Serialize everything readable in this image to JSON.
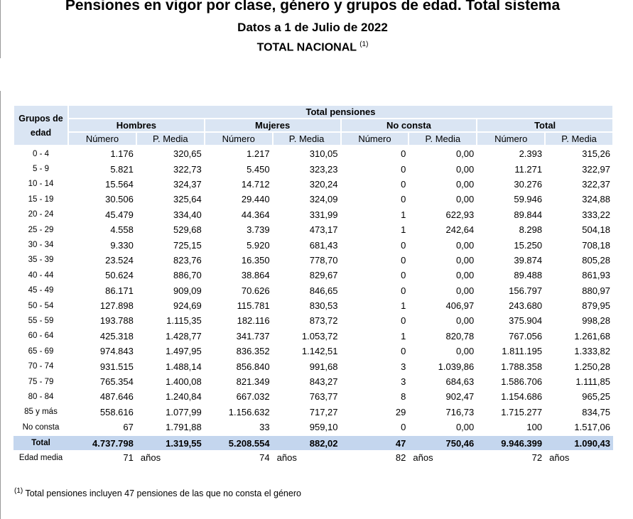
{
  "header": {
    "title": "Pensiones en vigor por clase, género y grupos de edad. Total sistema",
    "subtitle": "Datos a 1 de Julio de 2022",
    "heading": "TOTAL NACIONAL",
    "heading_note": "(1)"
  },
  "table": {
    "corner": "Grupos de edad",
    "group_header": "Total pensiones",
    "sections": [
      "Hombres",
      "Mujeres",
      "No consta",
      "Total"
    ],
    "columns": [
      "Número",
      "P. Media",
      "Número",
      "P. Media",
      "Número",
      "P. Media",
      "Número",
      "P. Media"
    ],
    "rows": [
      [
        "0 - 4",
        "1.176",
        "320,65",
        "1.217",
        "310,05",
        "0",
        "0,00",
        "2.393",
        "315,26"
      ],
      [
        "5 - 9",
        "5.821",
        "322,73",
        "5.450",
        "323,23",
        "0",
        "0,00",
        "11.271",
        "322,97"
      ],
      [
        "10 - 14",
        "15.564",
        "324,37",
        "14.712",
        "320,24",
        "0",
        "0,00",
        "30.276",
        "322,37"
      ],
      [
        "15 - 19",
        "30.506",
        "325,64",
        "29.440",
        "324,09",
        "0",
        "0,00",
        "59.946",
        "324,88"
      ],
      [
        "20 - 24",
        "45.479",
        "334,40",
        "44.364",
        "331,99",
        "1",
        "622,93",
        "89.844",
        "333,22"
      ],
      [
        "25 - 29",
        "4.558",
        "529,68",
        "3.739",
        "473,17",
        "1",
        "242,64",
        "8.298",
        "504,18"
      ],
      [
        "30 - 34",
        "9.330",
        "725,15",
        "5.920",
        "681,43",
        "0",
        "0,00",
        "15.250",
        "708,18"
      ],
      [
        "35 - 39",
        "23.524",
        "823,76",
        "16.350",
        "778,70",
        "0",
        "0,00",
        "39.874",
        "805,28"
      ],
      [
        "40 - 44",
        "50.624",
        "886,70",
        "38.864",
        "829,67",
        "0",
        "0,00",
        "89.488",
        "861,93"
      ],
      [
        "45 - 49",
        "86.171",
        "909,09",
        "70.626",
        "846,65",
        "0",
        "0,00",
        "156.797",
        "880,97"
      ],
      [
        "50 - 54",
        "127.898",
        "924,69",
        "115.781",
        "830,53",
        "1",
        "406,97",
        "243.680",
        "879,95"
      ],
      [
        "55 - 59",
        "193.788",
        "1.115,35",
        "182.116",
        "873,72",
        "0",
        "0,00",
        "375.904",
        "998,28"
      ],
      [
        "60 - 64",
        "425.318",
        "1.428,77",
        "341.737",
        "1.053,72",
        "1",
        "820,78",
        "767.056",
        "1.261,68"
      ],
      [
        "65 - 69",
        "974.843",
        "1.497,95",
        "836.352",
        "1.142,51",
        "0",
        "0,00",
        "1.811.195",
        "1.333,82"
      ],
      [
        "70 - 74",
        "931.515",
        "1.488,14",
        "856.840",
        "991,68",
        "3",
        "1.039,86",
        "1.788.358",
        "1.250,28"
      ],
      [
        "75 - 79",
        "765.354",
        "1.400,08",
        "821.349",
        "843,27",
        "3",
        "684,63",
        "1.586.706",
        "1.111,85"
      ],
      [
        "80 - 84",
        "487.646",
        "1.240,84",
        "667.032",
        "763,77",
        "8",
        "902,47",
        "1.154.686",
        "965,25"
      ],
      [
        "85 y más",
        "558.616",
        "1.077,99",
        "1.156.632",
        "717,27",
        "29",
        "716,73",
        "1.715.277",
        "834,75"
      ],
      [
        "No consta",
        "67",
        "1.791,88",
        "33",
        "959,10",
        "0",
        "0,00",
        "100",
        "1.517,06"
      ]
    ],
    "total": [
      "Total",
      "4.737.798",
      "1.319,55",
      "5.208.554",
      "882,02",
      "47",
      "750,46",
      "9.946.399",
      "1.090,43"
    ],
    "mean_age": {
      "label": "Edad media",
      "values": [
        [
          "71",
          "años"
        ],
        [
          "74",
          "años"
        ],
        [
          "82",
          "años"
        ],
        [
          "72",
          "años"
        ]
      ]
    }
  },
  "footnote": {
    "marker": "(1)",
    "text": "Total pensiones incluyen 47 pensiones de las que no consta el género"
  }
}
